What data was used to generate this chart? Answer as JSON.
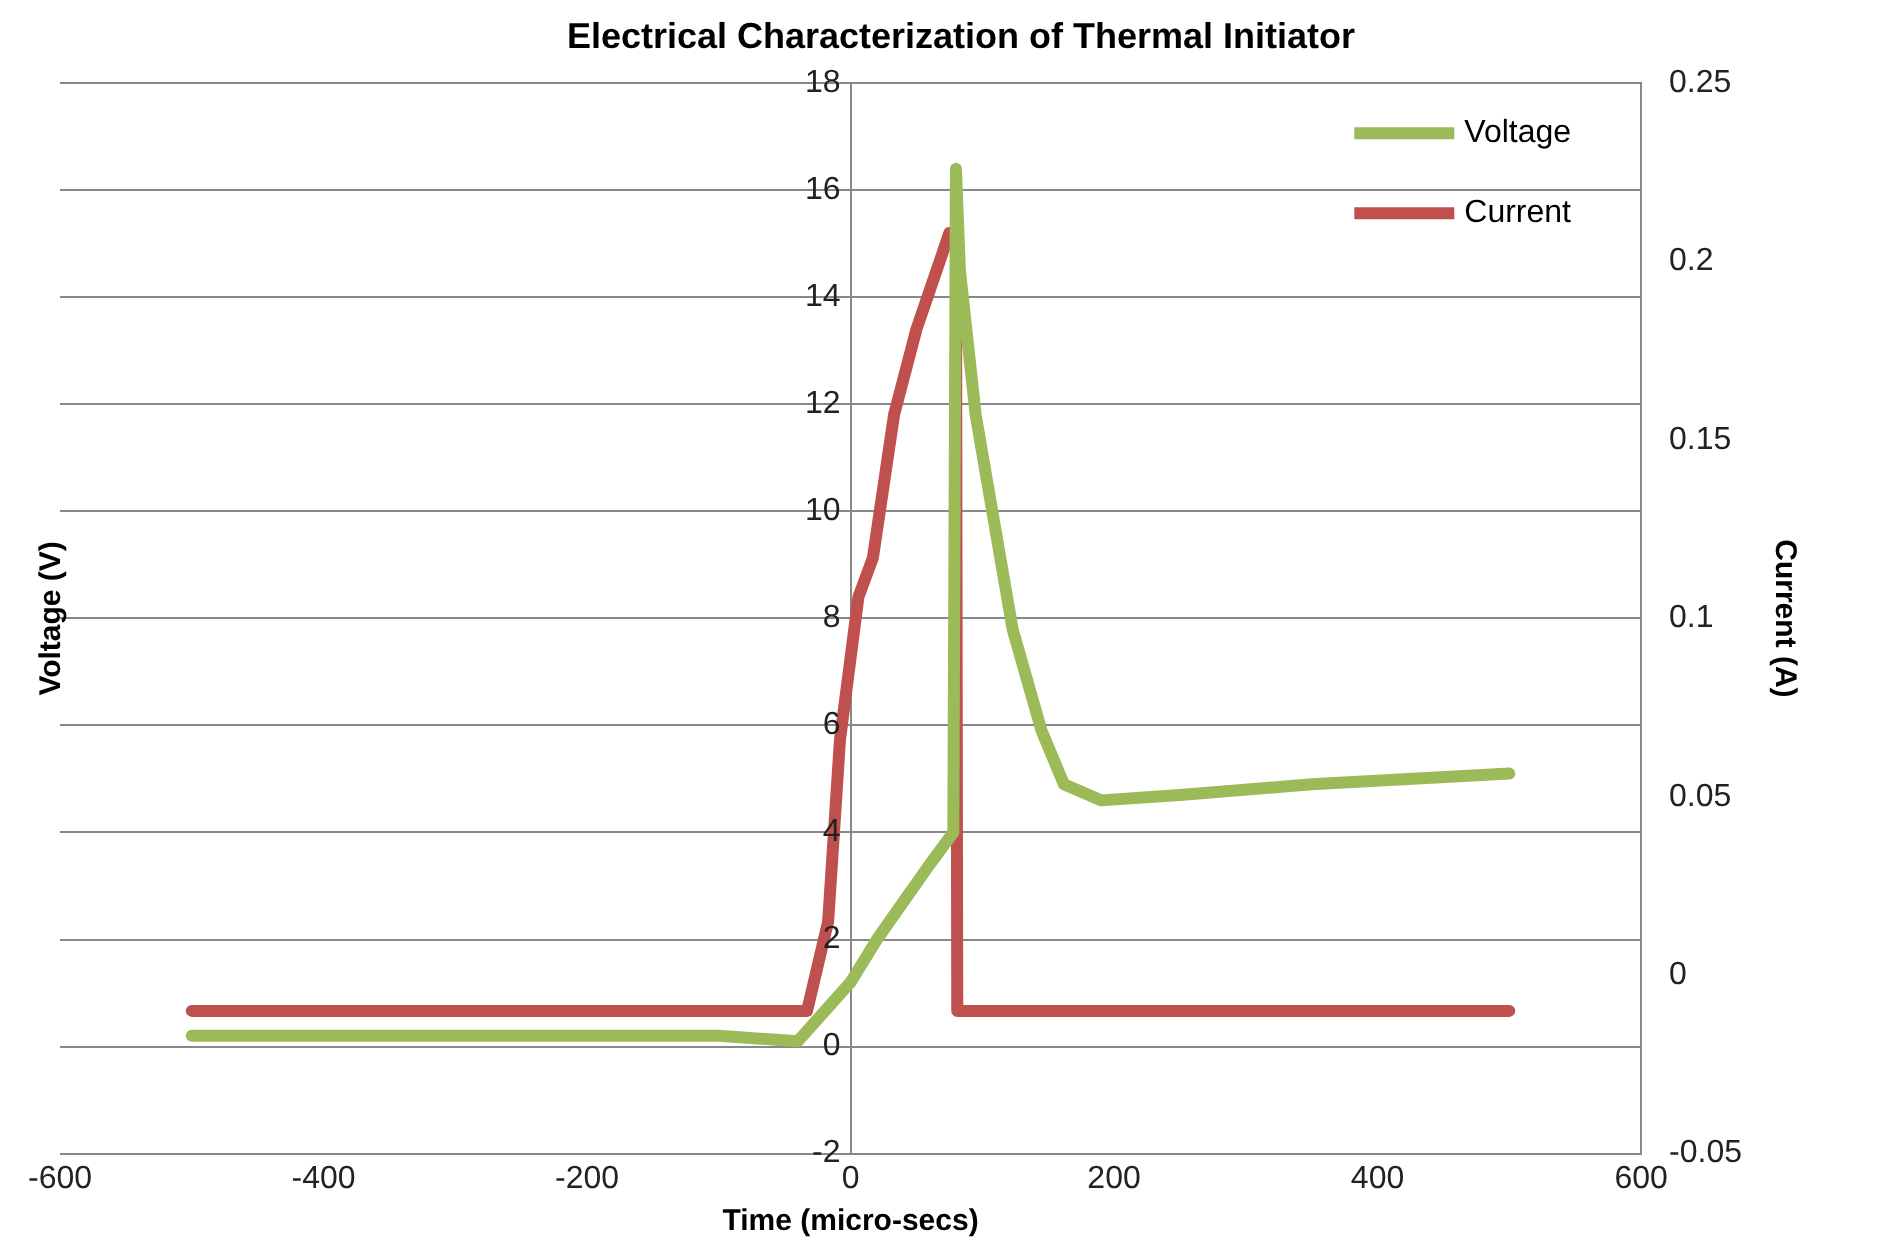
{
  "chart_data": {
    "type": "line",
    "title": "Electrical Characterization of Thermal Initiator",
    "xlabel": "Time (micro-secs)",
    "ylabel": "Voltage (V)",
    "y2label": "Current (A)",
    "xlim": [
      -600,
      600
    ],
    "xticks": [
      -600,
      -400,
      -200,
      0,
      200,
      400,
      600
    ],
    "ylim": [
      -2,
      18
    ],
    "yticks": [
      -2,
      0,
      2,
      4,
      6,
      8,
      10,
      12,
      14,
      16,
      18
    ],
    "y2lim": [
      -0.05,
      0.25
    ],
    "y2ticks": [
      -0.05,
      0,
      0.05,
      0.1,
      0.15,
      0.2,
      0.25
    ],
    "grid": "y",
    "legend": "top right",
    "marker": "none",
    "line_style": "solid",
    "series": [
      {
        "name": "Voltage",
        "color": "#9bbb59",
        "x": [
          -500,
          -400,
          -300,
          -200,
          -100,
          -40,
          0,
          20,
          40,
          60,
          75,
          78,
          80,
          83,
          95,
          123,
          145,
          162,
          190,
          250,
          350,
          500
        ],
        "values": [
          0.2,
          0.2,
          0.2,
          0.2,
          0.2,
          0.1,
          1.2,
          2.0,
          2.7,
          3.4,
          3.9,
          4.0,
          16.4,
          14.5,
          11.8,
          7.8,
          5.9,
          4.9,
          4.6,
          4.7,
          4.9,
          5.1
        ]
      },
      {
        "name": "Current",
        "color": "#c0504d",
        "axis": "y2",
        "x": [
          -500,
          -300,
          -100,
          -33,
          -17,
          -8,
          6,
          17,
          33,
          50,
          75,
          80,
          81,
          200,
          350,
          500
        ],
        "values": [
          -0.01,
          -0.01,
          -0.01,
          -0.01,
          0.015,
          0.066,
          0.106,
          0.117,
          0.157,
          0.181,
          0.208,
          0.208,
          -0.01,
          -0.01,
          -0.01,
          -0.01
        ]
      }
    ]
  }
}
